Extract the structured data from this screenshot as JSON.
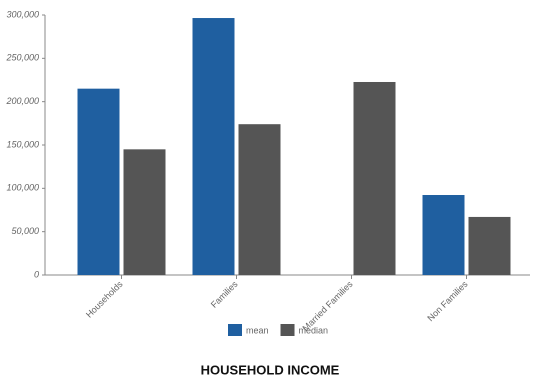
{
  "chart_data": {
    "type": "bar",
    "title": "HOUSEHOLD INCOME",
    "categories": [
      "Households",
      "Families",
      "Married Families",
      "Non Families"
    ],
    "series": [
      {
        "name": "mean",
        "color": "#1f5fa0",
        "values": [
          215000,
          296500,
          null,
          92300
        ]
      },
      {
        "name": "median",
        "color": "#555555",
        "values": [
          145000,
          174000,
          222700,
          67000
        ]
      }
    ],
    "ylim": [
      0,
      300000
    ],
    "yticks": [
      0,
      {
        "value": 50000,
        "label": "50,000"
      },
      {
        "value": 100000,
        "label": "100,000"
      },
      {
        "value": 150000,
        "label": "150,000"
      },
      {
        "value": 200000,
        "label": "200,000"
      },
      {
        "value": 250000,
        "label": "250,000"
      },
      {
        "value": 300000,
        "label": "300,000"
      }
    ],
    "legend": "bottom"
  }
}
